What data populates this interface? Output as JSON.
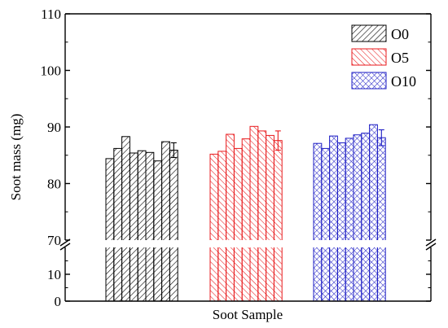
{
  "chart_data": {
    "type": "bar",
    "title": "",
    "xlabel": "Soot Sample",
    "ylabel": "Soot mass (mg)",
    "axis_break": {
      "lower_range": [
        0,
        20
      ],
      "upper_range": [
        70,
        110
      ]
    },
    "y_ticks": [
      "0",
      "10",
      "70",
      "80",
      "90",
      "100",
      "110"
    ],
    "legend_position": "top-right",
    "grid": false,
    "series": [
      {
        "name": "O0",
        "color": "#000000",
        "pattern": "diagonal-hatch",
        "values": [
          84.4,
          86.2,
          88.3,
          85.4,
          85.8,
          85.5,
          84.0,
          87.4,
          85.9
        ],
        "error_last": 1.3
      },
      {
        "name": "O5",
        "color": "#e8191c",
        "pattern": "diagonal-hatch",
        "values": [
          85.2,
          85.7,
          88.7,
          86.2,
          87.9,
          90.1,
          89.3,
          88.5,
          87.6
        ],
        "error_last": 1.7
      },
      {
        "name": "O10",
        "color": "#1c1cc4",
        "pattern": "cross-hatch",
        "values": [
          87.1,
          86.2,
          88.4,
          87.2,
          88.0,
          88.6,
          88.9,
          90.4,
          88.1
        ],
        "error_last": 1.4
      }
    ]
  }
}
